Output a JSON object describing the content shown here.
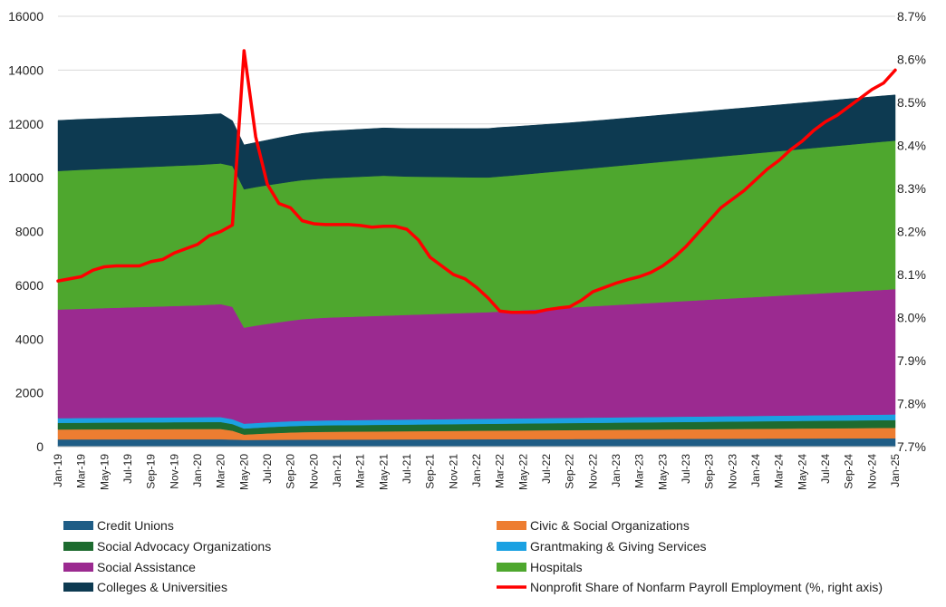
{
  "chart_data": {
    "type": "area",
    "stacked": true,
    "title": "",
    "xlabel": "",
    "ylabel": "",
    "ylim": [
      0,
      16000
    ],
    "y_ticks": [
      "0",
      "2000",
      "4000",
      "6000",
      "8000",
      "10000",
      "12000",
      "14000",
      "16000"
    ],
    "y2lim": [
      7.7,
      8.7
    ],
    "y2_ticks": [
      "7.7%",
      "7.8%",
      "7.9%",
      "8.0%",
      "8.1%",
      "8.2%",
      "8.3%",
      "8.4%",
      "8.5%",
      "8.6%",
      "8.7%"
    ],
    "x_tick_labels": [
      "Jan-19",
      "Mar-19",
      "May-19",
      "Jul-19",
      "Sep-19",
      "Nov-19",
      "Jan-20",
      "Mar-20",
      "May-20",
      "Jul-20",
      "Sep-20",
      "Nov-20",
      "Jan-21",
      "Mar-21",
      "May-21",
      "Jul-21",
      "Sep-21",
      "Nov-21",
      "Jan-22",
      "Mar-22",
      "May-22",
      "Jul-22",
      "Sep-22",
      "Nov-22",
      "Jan-23",
      "Mar-23",
      "May-23",
      "Jul-23",
      "Sep-23",
      "Nov-23",
      "Jan-24",
      "Mar-24",
      "May-24",
      "Jul-24",
      "Sep-24",
      "Nov-24",
      "Jan-25"
    ],
    "grid": "horizontal",
    "legend_position": "bottom",
    "series": [
      {
        "name": "Credit Unions",
        "color": "#1f5d86",
        "values": [
          270,
          270,
          271,
          271,
          272,
          272,
          273,
          273,
          274,
          274,
          275,
          275,
          275,
          275,
          275,
          265,
          250,
          252,
          254,
          256,
          258,
          260,
          262,
          263,
          264,
          265,
          266,
          267,
          268,
          269,
          270,
          271,
          272,
          273,
          274,
          275,
          276,
          277,
          278,
          279,
          280,
          281,
          282,
          283,
          284,
          285,
          286,
          287,
          288,
          289,
          290,
          291,
          292,
          293,
          294,
          295,
          296,
          297,
          298,
          299,
          300,
          301,
          302,
          303,
          304,
          305,
          306,
          307,
          308,
          309,
          310,
          311,
          312
        ]
      },
      {
        "name": "Civic & Social Organizations",
        "color": "#ed7d31",
        "values": [
          370,
          371,
          372,
          373,
          374,
          375,
          376,
          377,
          378,
          379,
          380,
          381,
          382,
          383,
          384,
          330,
          200,
          220,
          240,
          255,
          270,
          280,
          285,
          290,
          292,
          294,
          296,
          298,
          300,
          302,
          304,
          306,
          308,
          310,
          312,
          314,
          316,
          318,
          320,
          322,
          324,
          326,
          328,
          330,
          332,
          334,
          336,
          338,
          340,
          342,
          344,
          346,
          348,
          350,
          352,
          354,
          356,
          358,
          360,
          362,
          364,
          366,
          368,
          370,
          372,
          374,
          376,
          378,
          380,
          382,
          384,
          386,
          388
        ]
      },
      {
        "name": "Social Advocacy Organizations",
        "color": "#1d6b2f",
        "values": [
          245,
          246,
          247,
          248,
          249,
          250,
          251,
          252,
          253,
          254,
          255,
          256,
          257,
          258,
          258,
          245,
          225,
          228,
          231,
          234,
          236,
          238,
          240,
          241,
          242,
          243,
          244,
          245,
          246,
          247,
          248,
          249,
          250,
          251,
          252,
          253,
          254,
          255,
          256,
          257,
          258,
          259,
          260,
          261,
          262,
          263,
          264,
          265,
          266,
          267,
          268,
          269,
          270,
          271,
          272,
          273,
          274,
          275,
          276,
          277,
          278,
          279,
          280,
          281,
          282,
          283,
          284,
          285,
          286,
          287,
          288,
          289,
          290
        ]
      },
      {
        "name": "Grantmaking & Giving Services",
        "color": "#1ba1e2",
        "values": [
          175,
          175,
          176,
          176,
          177,
          177,
          178,
          178,
          179,
          179,
          180,
          180,
          181,
          181,
          182,
          182,
          180,
          180,
          181,
          181,
          182,
          182,
          183,
          183,
          184,
          184,
          185,
          185,
          186,
          186,
          187,
          187,
          188,
          188,
          189,
          189,
          190,
          190,
          191,
          191,
          192,
          192,
          193,
          193,
          194,
          194,
          195,
          195,
          196,
          196,
          197,
          197,
          198,
          198,
          199,
          199,
          200,
          200,
          201,
          201,
          202,
          202,
          203,
          203,
          204,
          204,
          205,
          205,
          206,
          206,
          207,
          207,
          208
        ]
      },
      {
        "name": "Social Assistance",
        "color": "#9b2a90",
        "values": [
          4040,
          4050,
          4060,
          4070,
          4080,
          4090,
          4100,
          4110,
          4120,
          4130,
          4140,
          4150,
          4160,
          4180,
          4200,
          4180,
          3570,
          3620,
          3660,
          3700,
          3740,
          3780,
          3800,
          3820,
          3830,
          3840,
          3850,
          3860,
          3870,
          3880,
          3890,
          3900,
          3910,
          3920,
          3930,
          3940,
          3950,
          3960,
          3980,
          4000,
          4020,
          4040,
          4060,
          4080,
          4100,
          4120,
          4140,
          4160,
          4180,
          4200,
          4220,
          4240,
          4260,
          4280,
          4300,
          4320,
          4340,
          4360,
          4380,
          4400,
          4420,
          4440,
          4460,
          4480,
          4500,
          4520,
          4540,
          4560,
          4580,
          4600,
          4620,
          4640,
          4660
        ]
      },
      {
        "name": "Hospitals",
        "color": "#4ea72e",
        "values": [
          5150,
          5160,
          5170,
          5175,
          5180,
          5185,
          5190,
          5195,
          5200,
          5205,
          5210,
          5215,
          5220,
          5225,
          5230,
          5235,
          5145,
          5150,
          5155,
          5160,
          5165,
          5170,
          5175,
          5180,
          5185,
          5190,
          5195,
          5200,
          5205,
          5175,
          5145,
          5125,
          5105,
          5085,
          5065,
          5045,
          5025,
          5010,
          5020,
          5030,
          5045,
          5060,
          5075,
          5090,
          5105,
          5120,
          5135,
          5150,
          5165,
          5180,
          5195,
          5210,
          5225,
          5240,
          5255,
          5270,
          5285,
          5300,
          5315,
          5330,
          5345,
          5360,
          5375,
          5390,
          5405,
          5420,
          5435,
          5450,
          5465,
          5480,
          5495,
          5510,
          5520
        ]
      },
      {
        "name": "Colleges & Universities",
        "color": "#0d3a51",
        "values": [
          1880,
          1878,
          1876,
          1874,
          1872,
          1870,
          1868,
          1866,
          1864,
          1862,
          1860,
          1858,
          1856,
          1854,
          1851,
          1680,
          1650,
          1660,
          1675,
          1700,
          1720,
          1735,
          1745,
          1750,
          1755,
          1760,
          1765,
          1770,
          1775,
          1780,
          1785,
          1790,
          1795,
          1800,
          1805,
          1810,
          1815,
          1820,
          1825,
          1815,
          1805,
          1795,
          1785,
          1775,
          1765,
          1760,
          1755,
          1750,
          1748,
          1746,
          1744,
          1742,
          1740,
          1738,
          1736,
          1734,
          1732,
          1730,
          1728,
          1726,
          1724,
          1722,
          1720,
          1718,
          1716,
          1714,
          1712,
          1710,
          1708,
          1706,
          1704,
          1702,
          1700
        ]
      }
    ],
    "line_series": {
      "name": "Nonprofit Share of Nonfarm Payroll Employment (%, right axis)",
      "color": "#ff0000",
      "axis": "right",
      "values": [
        8.085,
        8.09,
        8.095,
        8.11,
        8.118,
        8.12,
        8.12,
        8.12,
        8.13,
        8.135,
        8.15,
        8.16,
        8.17,
        8.19,
        8.2,
        8.215,
        8.62,
        8.42,
        8.31,
        8.265,
        8.255,
        8.225,
        8.218,
        8.216,
        8.216,
        8.216,
        8.214,
        8.21,
        8.212,
        8.212,
        8.205,
        8.18,
        8.14,
        8.12,
        8.1,
        8.09,
        8.07,
        8.045,
        8.015,
        8.012,
        8.012,
        8.012,
        8.018,
        8.022,
        8.025,
        8.04,
        8.06,
        8.07,
        8.08,
        8.088,
        8.095,
        8.105,
        8.12,
        8.14,
        8.165,
        8.195,
        8.225,
        8.255,
        8.275,
        8.295,
        8.32,
        8.345,
        8.365,
        8.39,
        8.41,
        8.435,
        8.455,
        8.47,
        8.49,
        8.51,
        8.53,
        8.545,
        8.575
      ]
    }
  }
}
